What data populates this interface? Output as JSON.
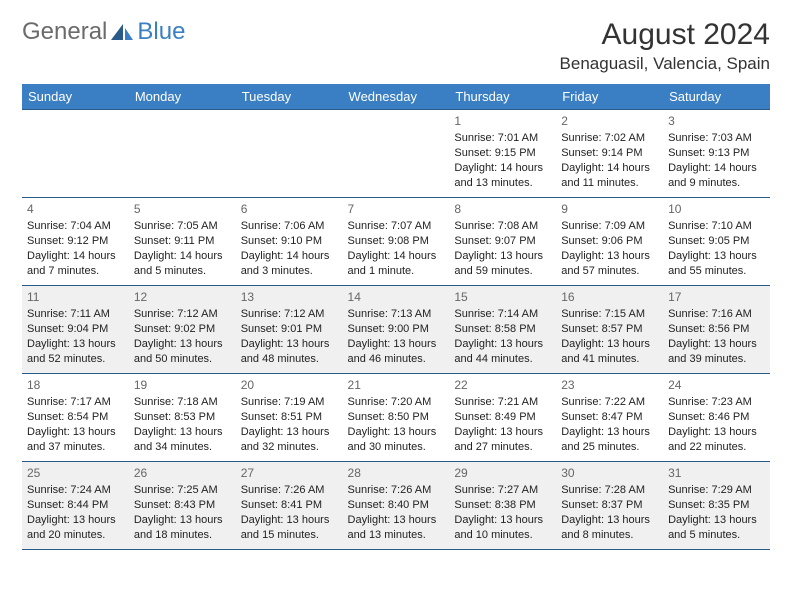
{
  "logo": {
    "general": "General",
    "blue": "Blue"
  },
  "title": "August 2024",
  "location": "Benaguasil, Valencia, Spain",
  "colors": {
    "header_bg": "#3a7fc4",
    "header_text": "#ffffff",
    "border": "#2a5a8a",
    "shaded_bg": "#f0f0f0",
    "text": "#222222",
    "daynum": "#666666",
    "logo_gray": "#6b6b6b",
    "logo_blue": "#3a7fc4"
  },
  "typography": {
    "title_fontsize": 30,
    "location_fontsize": 17,
    "th_fontsize": 13,
    "cell_fontsize": 11,
    "daynum_fontsize": 12
  },
  "weekdays": [
    "Sunday",
    "Monday",
    "Tuesday",
    "Wednesday",
    "Thursday",
    "Friday",
    "Saturday"
  ],
  "shaded_rows": [
    2,
    4
  ],
  "weeks": [
    [
      null,
      null,
      null,
      null,
      {
        "d": "1",
        "sr": "7:01 AM",
        "ss": "9:15 PM",
        "dl": "14 hours and 13 minutes."
      },
      {
        "d": "2",
        "sr": "7:02 AM",
        "ss": "9:14 PM",
        "dl": "14 hours and 11 minutes."
      },
      {
        "d": "3",
        "sr": "7:03 AM",
        "ss": "9:13 PM",
        "dl": "14 hours and 9 minutes."
      }
    ],
    [
      {
        "d": "4",
        "sr": "7:04 AM",
        "ss": "9:12 PM",
        "dl": "14 hours and 7 minutes."
      },
      {
        "d": "5",
        "sr": "7:05 AM",
        "ss": "9:11 PM",
        "dl": "14 hours and 5 minutes."
      },
      {
        "d": "6",
        "sr": "7:06 AM",
        "ss": "9:10 PM",
        "dl": "14 hours and 3 minutes."
      },
      {
        "d": "7",
        "sr": "7:07 AM",
        "ss": "9:08 PM",
        "dl": "14 hours and 1 minute."
      },
      {
        "d": "8",
        "sr": "7:08 AM",
        "ss": "9:07 PM",
        "dl": "13 hours and 59 minutes."
      },
      {
        "d": "9",
        "sr": "7:09 AM",
        "ss": "9:06 PM",
        "dl": "13 hours and 57 minutes."
      },
      {
        "d": "10",
        "sr": "7:10 AM",
        "ss": "9:05 PM",
        "dl": "13 hours and 55 minutes."
      }
    ],
    [
      {
        "d": "11",
        "sr": "7:11 AM",
        "ss": "9:04 PM",
        "dl": "13 hours and 52 minutes."
      },
      {
        "d": "12",
        "sr": "7:12 AM",
        "ss": "9:02 PM",
        "dl": "13 hours and 50 minutes."
      },
      {
        "d": "13",
        "sr": "7:12 AM",
        "ss": "9:01 PM",
        "dl": "13 hours and 48 minutes."
      },
      {
        "d": "14",
        "sr": "7:13 AM",
        "ss": "9:00 PM",
        "dl": "13 hours and 46 minutes."
      },
      {
        "d": "15",
        "sr": "7:14 AM",
        "ss": "8:58 PM",
        "dl": "13 hours and 44 minutes."
      },
      {
        "d": "16",
        "sr": "7:15 AM",
        "ss": "8:57 PM",
        "dl": "13 hours and 41 minutes."
      },
      {
        "d": "17",
        "sr": "7:16 AM",
        "ss": "8:56 PM",
        "dl": "13 hours and 39 minutes."
      }
    ],
    [
      {
        "d": "18",
        "sr": "7:17 AM",
        "ss": "8:54 PM",
        "dl": "13 hours and 37 minutes."
      },
      {
        "d": "19",
        "sr": "7:18 AM",
        "ss": "8:53 PM",
        "dl": "13 hours and 34 minutes."
      },
      {
        "d": "20",
        "sr": "7:19 AM",
        "ss": "8:51 PM",
        "dl": "13 hours and 32 minutes."
      },
      {
        "d": "21",
        "sr": "7:20 AM",
        "ss": "8:50 PM",
        "dl": "13 hours and 30 minutes."
      },
      {
        "d": "22",
        "sr": "7:21 AM",
        "ss": "8:49 PM",
        "dl": "13 hours and 27 minutes."
      },
      {
        "d": "23",
        "sr": "7:22 AM",
        "ss": "8:47 PM",
        "dl": "13 hours and 25 minutes."
      },
      {
        "d": "24",
        "sr": "7:23 AM",
        "ss": "8:46 PM",
        "dl": "13 hours and 22 minutes."
      }
    ],
    [
      {
        "d": "25",
        "sr": "7:24 AM",
        "ss": "8:44 PM",
        "dl": "13 hours and 20 minutes."
      },
      {
        "d": "26",
        "sr": "7:25 AM",
        "ss": "8:43 PM",
        "dl": "13 hours and 18 minutes."
      },
      {
        "d": "27",
        "sr": "7:26 AM",
        "ss": "8:41 PM",
        "dl": "13 hours and 15 minutes."
      },
      {
        "d": "28",
        "sr": "7:26 AM",
        "ss": "8:40 PM",
        "dl": "13 hours and 13 minutes."
      },
      {
        "d": "29",
        "sr": "7:27 AM",
        "ss": "8:38 PM",
        "dl": "13 hours and 10 minutes."
      },
      {
        "d": "30",
        "sr": "7:28 AM",
        "ss": "8:37 PM",
        "dl": "13 hours and 8 minutes."
      },
      {
        "d": "31",
        "sr": "7:29 AM",
        "ss": "8:35 PM",
        "dl": "13 hours and 5 minutes."
      }
    ]
  ],
  "labels": {
    "sunrise": "Sunrise: ",
    "sunset": "Sunset: ",
    "daylight": "Daylight: "
  }
}
